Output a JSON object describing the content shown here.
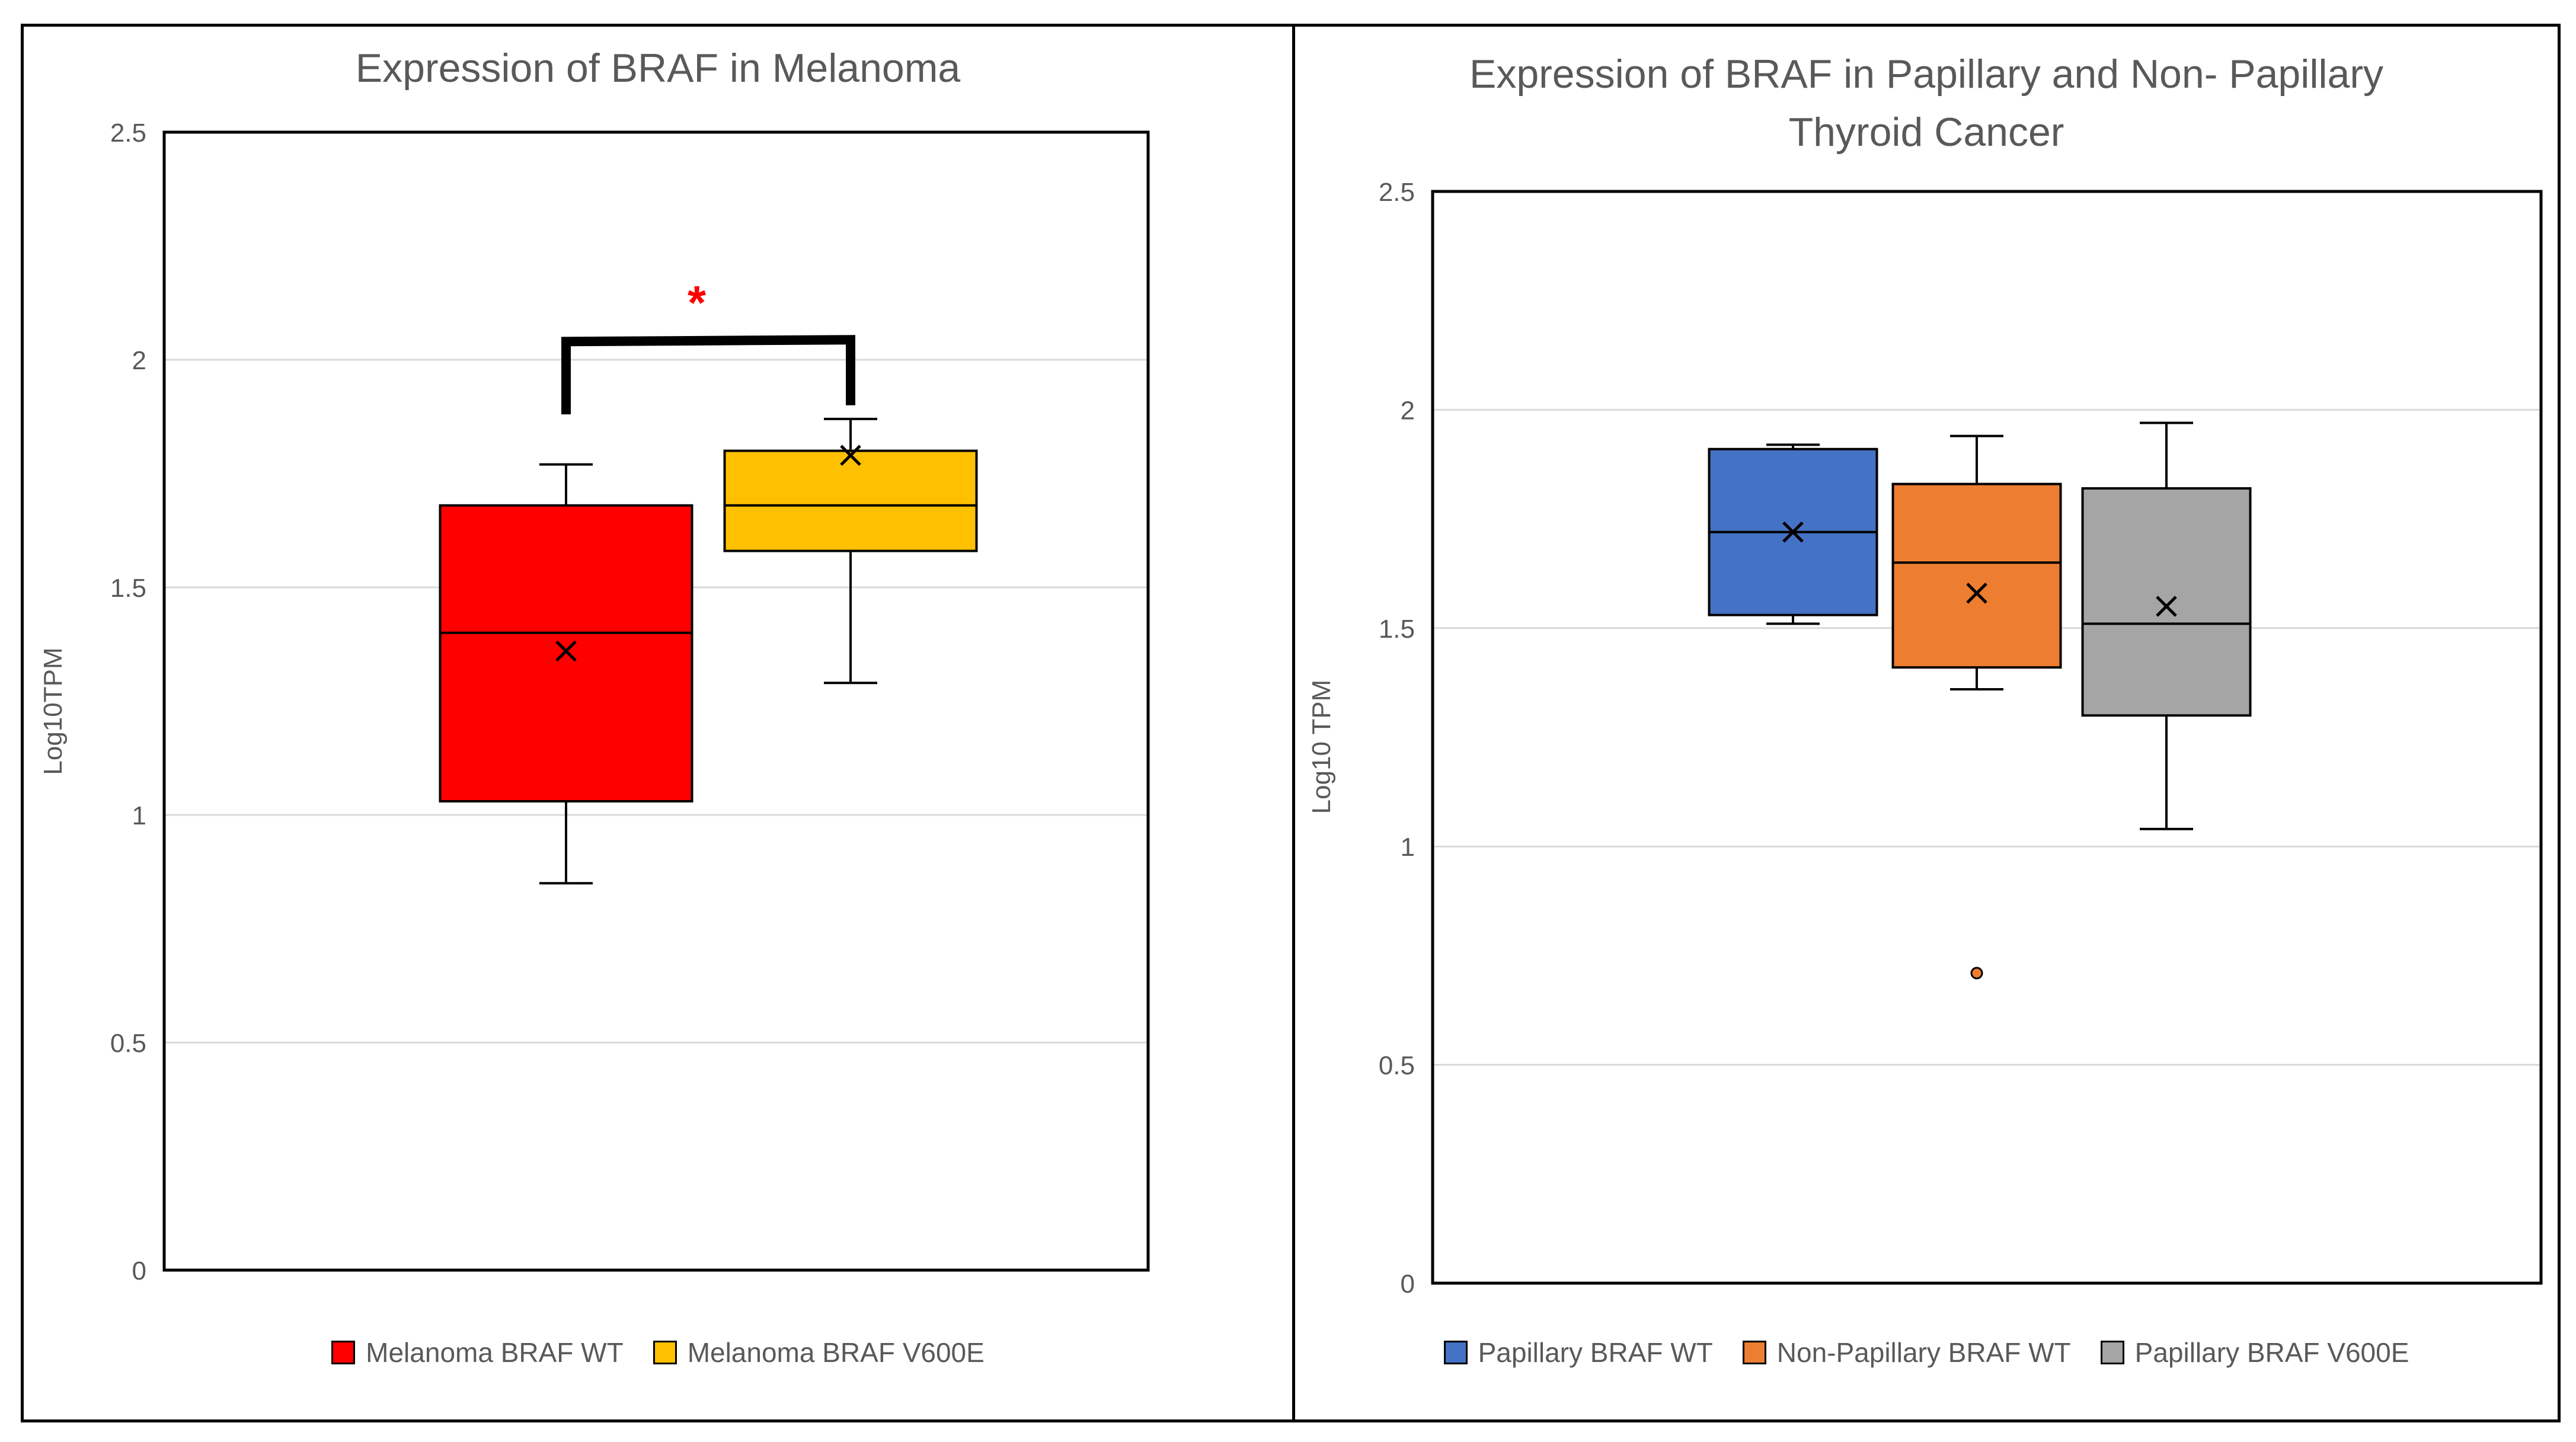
{
  "chart_data": [
    {
      "type": "box",
      "title": "Expression of BRAF in Melanoma",
      "ylabel": "Log10TPM",
      "xlabel": "",
      "ylim": [
        0,
        2.5
      ],
      "yticks": [
        "0",
        "0.5",
        "1",
        "1.5",
        "2",
        "2.5"
      ],
      "grid": true,
      "legend_position": "bottom",
      "series": [
        {
          "name": "Melanoma BRAF WT",
          "color": "#FF0000",
          "min": 0.85,
          "q1": 1.03,
          "median": 1.4,
          "q3": 1.68,
          "max": 1.77,
          "mean": 1.36,
          "outliers": []
        },
        {
          "name": "Melanoma BRAF V600E",
          "color": "#FFC000",
          "min": 1.29,
          "q1": 1.58,
          "median": 1.68,
          "q3": 1.8,
          "max": 1.87,
          "mean": 1.79,
          "outliers": []
        }
      ],
      "annotation": {
        "text": "*",
        "color": "#FF0000",
        "between": [
          0,
          1
        ]
      }
    },
    {
      "type": "box",
      "title": "Expression of BRAF in Papillary and Non- Papillary Thyroid Cancer",
      "title_lines": [
        "Expression of BRAF in Papillary and Non- Papillary",
        "Thyroid Cancer"
      ],
      "ylabel": "Log10 TPM",
      "xlabel": "",
      "ylim": [
        0,
        2.5
      ],
      "yticks": [
        "0",
        "0.5",
        "1",
        "1.5",
        "2",
        "2.5"
      ],
      "grid": true,
      "legend_position": "bottom",
      "series": [
        {
          "name": "Papillary BRAF WT",
          "color": "#4472C4",
          "min": 1.51,
          "q1": 1.53,
          "median": 1.72,
          "q3": 1.91,
          "max": 1.92,
          "mean": 1.72,
          "outliers": []
        },
        {
          "name": "Non-Papillary BRAF WT",
          "color": "#ED7D31",
          "min": 1.36,
          "q1": 1.41,
          "median": 1.65,
          "q3": 1.83,
          "max": 1.94,
          "mean": 1.58,
          "outliers": [
            0.71
          ]
        },
        {
          "name": "Papillary BRAF V600E",
          "color": "#A5A5A5",
          "min": 1.04,
          "q1": 1.3,
          "median": 1.51,
          "q3": 1.82,
          "max": 1.97,
          "mean": 1.55,
          "outliers": []
        }
      ]
    }
  ]
}
